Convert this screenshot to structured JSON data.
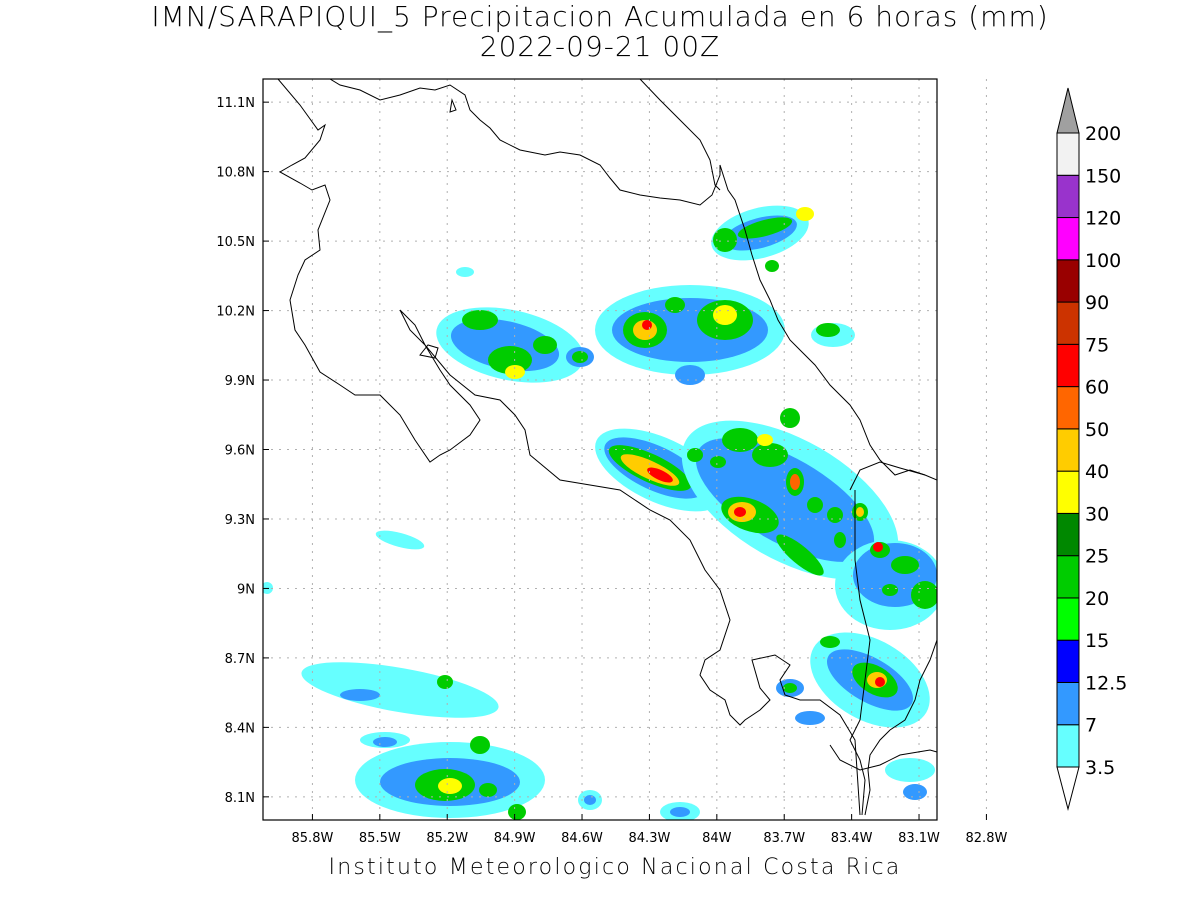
{
  "title_line1": "IMN/SARAPIQUI_5 Precipitacion Acumulada en 6 horas (mm)",
  "title_line2": "2022-09-21 00Z",
  "credit": "Instituto Meteorologico Nacional Costa Rica",
  "map": {
    "lon_range": [
      -86.02,
      -83.02
    ],
    "lat_range": [
      8.0,
      11.2
    ],
    "lon_ticks": [
      "85.8W",
      "85.5W",
      "85.2W",
      "84.9W",
      "84.6W",
      "84.3W",
      "84W",
      "83.7W",
      "83.4W",
      "83.1W",
      "82.8W"
    ],
    "lat_ticks": [
      "8.1N",
      "8.4N",
      "8.7N",
      "9N",
      "9.3N",
      "9.6N",
      "9.9N",
      "10.2N",
      "10.5N",
      "10.8N",
      "11.1N"
    ]
  },
  "legend": {
    "levels": [
      "3.5",
      "7",
      "12.5",
      "15",
      "20",
      "25",
      "30",
      "40",
      "50",
      "60",
      "75",
      "90",
      "100",
      "120",
      "150",
      "200"
    ],
    "colors": [
      "#66ffff",
      "#3399ff",
      "#0000ff",
      "#00ff00",
      "#00cc00",
      "#008800",
      "#ffff00",
      "#ffcc00",
      "#ff6600",
      "#ff0000",
      "#cc3300",
      "#990000",
      "#ff00ff",
      "#9933cc",
      "#f2f2f2",
      "#a0a0a0"
    ]
  }
}
